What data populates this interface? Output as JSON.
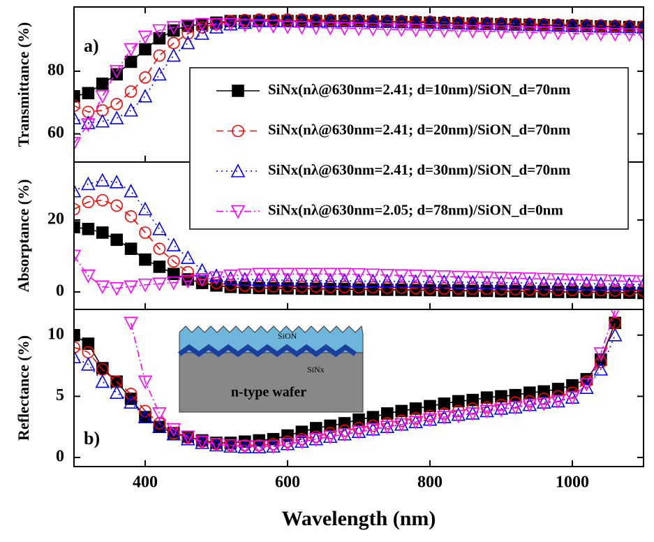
{
  "chart_data": [
    {
      "type": "line",
      "ylabel": "Transmittance (%)",
      "annotation": "a)",
      "ylim": [
        51,
        100.5
      ],
      "yticks": [
        60,
        80
      ],
      "legend": "upper right",
      "series": [
        {
          "name": "SiNx(nλ@630nm=2.41; d=10nm)/SiON_d=70nm",
          "color": "#000000",
          "marker": "square",
          "linestyle": "solid",
          "values": [
            72,
            73,
            76,
            79,
            83,
            87,
            90.5,
            93,
            94.5,
            95,
            95.5,
            96,
            96,
            96,
            96,
            96,
            96,
            96,
            96,
            96,
            96,
            95.8,
            95.8,
            95.7,
            95.6,
            95.5,
            95.4,
            95.3,
            95.2,
            95.1,
            95,
            94.9,
            94.8,
            94.7,
            94.6,
            94.5,
            94.4,
            94.3,
            94.2,
            94.1,
            94
          ]
        },
        {
          "name": "SiNx(nλ@630nm=2.41; d=20nm)/SiON_d=70nm",
          "color": "#ff0000",
          "marker": "circle",
          "linestyle": "dash",
          "values": [
            69,
            67,
            67.5,
            69.5,
            73.5,
            78,
            85,
            89,
            92,
            94,
            95,
            96,
            96.3,
            96.5,
            96.5,
            96.5,
            96.5,
            96.4,
            96.4,
            96.3,
            96.3,
            96.2,
            96.1,
            96,
            95.9,
            95.8,
            95.7,
            95.6,
            95.5,
            95.4,
            95.3,
            95.2,
            95.1,
            95,
            94.9,
            94.8,
            94.7,
            94.6,
            94.5,
            94.4,
            94.3
          ]
        },
        {
          "name": "SiNx(nλ@630nm=2.41; d=30nm)/SiON_d=70nm",
          "color": "#0000ff",
          "marker": "triangle-up",
          "linestyle": "dot",
          "values": [
            65,
            63.5,
            64,
            65,
            67.5,
            72,
            79,
            85,
            89,
            92,
            94,
            95,
            95.5,
            96,
            96,
            96,
            96,
            96,
            96,
            96,
            96,
            95.9,
            95.8,
            95.7,
            95.6,
            95.5,
            95.4,
            95.3,
            95.2,
            95.1,
            95,
            94.9,
            94.8,
            94.7,
            94.6,
            94.5,
            94.4,
            94.3,
            94.2,
            94.1,
            94
          ]
        },
        {
          "name": "SiNx(nλ@630nm=2.05; d=78nm)/SiON_d=0nm",
          "color": "#ff00ff",
          "marker": "triangle-down",
          "linestyle": "dashdot",
          "values": [
            57,
            63,
            72,
            80,
            87,
            91,
            93,
            94,
            94.5,
            95,
            95,
            95,
            94.8,
            94.6,
            94.4,
            94.2,
            94,
            93.9,
            93.8,
            93.7,
            93.6,
            93.5,
            93.4,
            93.3,
            93.2,
            93.1,
            93,
            92.9,
            92.8,
            92.7,
            92.6,
            92.5,
            92.4,
            92.3,
            92.2,
            92.1,
            92,
            91.9,
            91.8,
            91.7,
            91.6
          ]
        }
      ]
    },
    {
      "type": "line",
      "ylabel": "Absorptance (%)",
      "ylim": [
        -4.85,
        36.1
      ],
      "yticks": [
        0,
        20
      ],
      "series": [
        {
          "color": "#000000",
          "values": [
            18,
            17.5,
            16.5,
            14.5,
            12,
            9,
            7,
            5,
            3.5,
            2.5,
            1.8,
            1.4,
            1.2,
            1.1,
            1,
            1,
            0.9,
            0.9,
            0.8,
            0.8,
            0.7,
            0.7,
            0.6,
            0.6,
            0.5,
            0.5,
            0.4,
            0.4,
            0.3,
            0.3,
            0.2,
            0.2,
            0.1,
            0.1,
            0,
            0,
            -0.1,
            -0.1,
            -0.2,
            -0.2,
            -0.3
          ]
        },
        {
          "color": "#ff0000",
          "values": [
            23,
            25,
            25.5,
            24,
            21,
            16.5,
            12,
            8.5,
            5.5,
            3.5,
            2.5,
            2,
            1.8,
            1.7,
            1.6,
            1.6,
            1.5,
            1.5,
            1.4,
            1.4,
            1.3,
            1.3,
            1.2,
            1.2,
            1.1,
            1.1,
            1,
            1,
            0.9,
            0.9,
            0.8,
            0.8,
            0.7,
            0.7,
            0.6,
            0.6,
            0.5,
            0.5,
            0.4,
            0.4,
            0.3
          ]
        },
        {
          "color": "#0000ff",
          "values": [
            28,
            30,
            31,
            30.5,
            28,
            23,
            17.5,
            13,
            9.5,
            6,
            4.5,
            3.8,
            3.5,
            3.4,
            3.3,
            3.3,
            3.2,
            3.2,
            3.1,
            3.1,
            3,
            3,
            3,
            2.9,
            2.9,
            2.8,
            2.8,
            2.7,
            2.7,
            2.6,
            2.6,
            2.5,
            2.5,
            2.4,
            2.4,
            2.3,
            2.3,
            2.2,
            2.2,
            2.1,
            2.1
          ]
        },
        {
          "color": "#ff00ff",
          "values": [
            10,
            4.5,
            1.5,
            1,
            1.5,
            2,
            2.3,
            2.6,
            3,
            3.5,
            4,
            4.5,
            4.8,
            5,
            5,
            5,
            5,
            5,
            5,
            5,
            4.9,
            4.8,
            4.7,
            4.6,
            4.5,
            4.4,
            4.3,
            4.2,
            4.1,
            4,
            3.9,
            3.8,
            3.7,
            3.6,
            3.5,
            3.4,
            3.3,
            3.2,
            3.1,
            3,
            2.9
          ]
        }
      ]
    },
    {
      "type": "line",
      "ylabel": "Reflectance (%)",
      "annotation": "b)",
      "xlabel": "Wavelength (nm)",
      "ylim": [
        -0.74,
        12.1
      ],
      "yticks": [
        0,
        5,
        10
      ],
      "xlim": [
        300,
        1100
      ],
      "xticks": [
        400,
        600,
        800,
        1000
      ],
      "x": [
        300,
        320,
        340,
        360,
        380,
        400,
        420,
        440,
        460,
        480,
        500,
        520,
        540,
        560,
        580,
        600,
        620,
        640,
        660,
        680,
        700,
        720,
        740,
        760,
        780,
        800,
        820,
        840,
        860,
        880,
        900,
        920,
        940,
        960,
        980,
        1000,
        1020,
        1040,
        1060,
        1080,
        1100
      ],
      "inset_labels": [
        "SiON",
        "SiNx",
        "n-type wafer"
      ],
      "series": [
        {
          "color": "#000000",
          "values": [
            10,
            9.3,
            7.3,
            6.2,
            4.8,
            3.3,
            2.5,
            2,
            1.7,
            1.4,
            1.2,
            1.2,
            1.3,
            1.4,
            1.5,
            1.8,
            2.1,
            2.4,
            2.6,
            2.8,
            3.1,
            3.3,
            3.6,
            3.8,
            4,
            4.2,
            4.4,
            4.6,
            4.7,
            4.9,
            5,
            5.1,
            5.3,
            5.4,
            5.6,
            5.9,
            6.4,
            8,
            11,
            null,
            null
          ]
        },
        {
          "color": "#ff0000",
          "values": [
            9,
            8.6,
            7.2,
            6.2,
            5.2,
            3.8,
            2.8,
            2,
            1.6,
            1.3,
            1.1,
            1,
            1,
            1,
            1.1,
            1.3,
            1.5,
            1.7,
            2,
            2.2,
            2.4,
            2.6,
            2.8,
            3,
            3.2,
            3.4,
            3.6,
            3.8,
            4,
            4.1,
            4.3,
            4.5,
            4.6,
            4.8,
            5,
            5.3,
            6.2,
            7.8,
            11,
            null,
            null
          ]
        },
        {
          "color": "#0000ff",
          "values": [
            8.2,
            7.6,
            6.2,
            5.3,
            4.5,
            3.3,
            2.5,
            1.9,
            1.5,
            1.2,
            1,
            0.9,
            0.85,
            0.85,
            0.9,
            1.1,
            1.3,
            1.5,
            1.7,
            1.9,
            2.1,
            2.3,
            2.5,
            2.7,
            2.9,
            3.1,
            3.3,
            3.5,
            3.6,
            3.8,
            4,
            4.1,
            4.3,
            4.5,
            4.6,
            4.9,
            5.7,
            7.2,
            10,
            null,
            null
          ]
        },
        {
          "color": "#ff00ff",
          "values": [
            null,
            null,
            null,
            null,
            11,
            6.2,
            3.6,
            2.3,
            1.7,
            1.3,
            1.1,
            1,
            0.9,
            0.9,
            0.9,
            1.1,
            1.3,
            1.5,
            1.7,
            1.9,
            2.1,
            2.3,
            2.5,
            2.7,
            2.9,
            3.1,
            3.3,
            3.4,
            3.6,
            3.8,
            3.9,
            4.1,
            4.3,
            4.4,
            4.6,
            4.9,
            6,
            8.5,
            12,
            null,
            null
          ]
        }
      ]
    }
  ]
}
